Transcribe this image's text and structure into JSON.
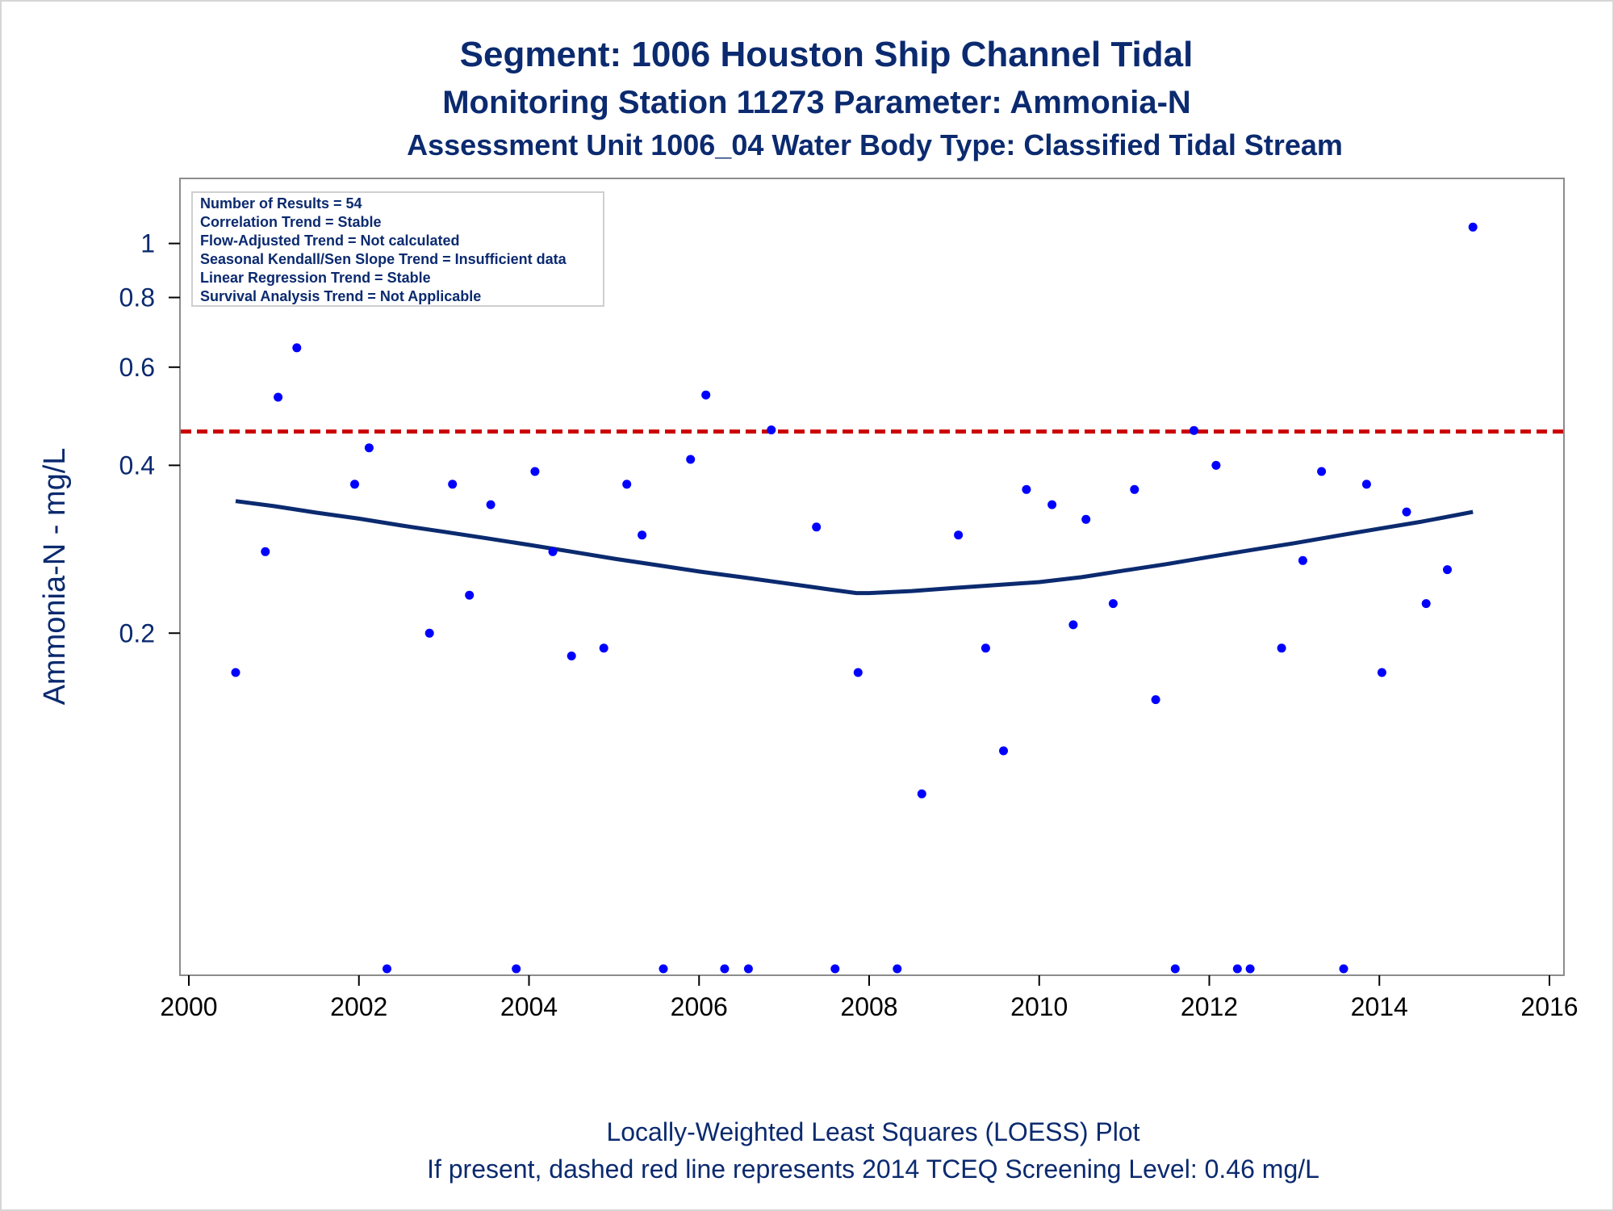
{
  "chart_data": {
    "type": "scatter",
    "title": "Segment: 1006  Houston Ship Channel Tidal",
    "subtitle": "Monitoring Station 11273 Parameter: Ammonia-N",
    "subtitle2": "Assessment Unit 1006_04   Water Body Type: Classified Tidal Stream",
    "xlabel": "",
    "ylabel": "Ammonia-N - mg/L",
    "footnote1": "Locally-Weighted Least Squares (LOESS) Plot",
    "footnote2": "If present, dashed red line represents 2014 TCEQ Screening Level: 0.46 mg/L",
    "y_scale": "log",
    "xlim": [
      2000,
      2016
    ],
    "ylim": [
      0.05,
      1.1
    ],
    "x_ticks": [
      "2000",
      "2002",
      "2004",
      "2006",
      "2008",
      "2010",
      "2012",
      "2014",
      "2016"
    ],
    "y_ticks": [
      {
        "value": 0.2,
        "label": "0.2"
      },
      {
        "value": 0.4,
        "label": "0.4"
      },
      {
        "value": 0.6,
        "label": "0.6"
      },
      {
        "value": 0.8,
        "label": "0.8"
      },
      {
        "value": 1.0,
        "label": "1"
      }
    ],
    "grid": false,
    "screening_level": {
      "value": 0.46,
      "color": "#cc0000",
      "style": "dashed"
    },
    "stats_box": {
      "placement": "top-left",
      "lines": [
        "Number of Results = 54",
        "Correlation Trend = Stable",
        "Flow-Adjusted Trend = Not calculated",
        "Seasonal Kendall/Sen Slope Trend = Insufficient data",
        "Linear Regression Trend = Stable",
        "Survival Analysis Trend = Not Applicable"
      ]
    },
    "colors": {
      "points": "#0000ff",
      "loess": "#0b2a6f",
      "text": "#0b2a6f",
      "frame": "#8c8c8c"
    },
    "points": [
      [
        2000.55,
        0.17
      ],
      [
        2000.9,
        0.28
      ],
      [
        2001.05,
        0.53
      ],
      [
        2001.27,
        0.65
      ],
      [
        2001.95,
        0.37
      ],
      [
        2002.12,
        0.43
      ],
      [
        2002.33,
        0.05
      ],
      [
        2002.83,
        0.2
      ],
      [
        2003.1,
        0.37
      ],
      [
        2003.3,
        0.234
      ],
      [
        2003.55,
        0.34
      ],
      [
        2003.85,
        0.05
      ],
      [
        2004.07,
        0.39
      ],
      [
        2004.28,
        0.28
      ],
      [
        2004.5,
        0.182
      ],
      [
        2004.88,
        0.188
      ],
      [
        2005.15,
        0.37
      ],
      [
        2005.33,
        0.3
      ],
      [
        2005.58,
        0.05
      ],
      [
        2005.9,
        0.41
      ],
      [
        2006.08,
        0.535
      ],
      [
        2006.3,
        0.05
      ],
      [
        2006.58,
        0.05
      ],
      [
        2006.85,
        0.463
      ],
      [
        2007.38,
        0.31
      ],
      [
        2007.6,
        0.05
      ],
      [
        2007.87,
        0.17
      ],
      [
        2008.33,
        0.05
      ],
      [
        2008.62,
        0.103
      ],
      [
        2009.05,
        0.3
      ],
      [
        2009.37,
        0.188
      ],
      [
        2009.58,
        0.123
      ],
      [
        2009.85,
        0.362
      ],
      [
        2010.15,
        0.34
      ],
      [
        2010.4,
        0.207
      ],
      [
        2010.55,
        0.32
      ],
      [
        2010.87,
        0.226
      ],
      [
        2011.12,
        0.362
      ],
      [
        2011.37,
        0.152
      ],
      [
        2011.6,
        0.05
      ],
      [
        2011.82,
        0.462
      ],
      [
        2012.08,
        0.4
      ],
      [
        2012.33,
        0.05
      ],
      [
        2012.48,
        0.05
      ],
      [
        2012.85,
        0.188
      ],
      [
        2013.1,
        0.27
      ],
      [
        2013.32,
        0.39
      ],
      [
        2013.58,
        0.05
      ],
      [
        2013.85,
        0.37
      ],
      [
        2014.03,
        0.17
      ],
      [
        2014.32,
        0.33
      ],
      [
        2014.55,
        0.226
      ],
      [
        2014.8,
        0.26
      ],
      [
        2015.1,
        1.07
      ]
    ],
    "loess": [
      [
        2000.55,
        0.345
      ],
      [
        2001.0,
        0.338
      ],
      [
        2001.5,
        0.329
      ],
      [
        2002.0,
        0.321
      ],
      [
        2002.5,
        0.312
      ],
      [
        2003.0,
        0.304
      ],
      [
        2003.5,
        0.296
      ],
      [
        2004.0,
        0.288
      ],
      [
        2004.5,
        0.28
      ],
      [
        2005.0,
        0.272
      ],
      [
        2005.5,
        0.265
      ],
      [
        2006.0,
        0.258
      ],
      [
        2006.5,
        0.252
      ],
      [
        2007.0,
        0.246
      ],
      [
        2007.5,
        0.24
      ],
      [
        2007.85,
        0.236
      ],
      [
        2008.0,
        0.236
      ],
      [
        2008.5,
        0.238
      ],
      [
        2009.0,
        0.241
      ],
      [
        2009.5,
        0.244
      ],
      [
        2010.0,
        0.247
      ],
      [
        2010.5,
        0.252
      ],
      [
        2011.0,
        0.259
      ],
      [
        2011.5,
        0.266
      ],
      [
        2012.0,
        0.274
      ],
      [
        2012.5,
        0.282
      ],
      [
        2013.0,
        0.29
      ],
      [
        2013.5,
        0.299
      ],
      [
        2014.0,
        0.308
      ],
      [
        2014.5,
        0.317
      ],
      [
        2015.1,
        0.33
      ]
    ]
  }
}
